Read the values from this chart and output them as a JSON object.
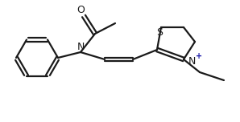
{
  "background_color": "#ffffff",
  "line_color": "#1a1a1a",
  "bond_width": 1.6,
  "font_size": 9,
  "plus_color": "#1a1aaa",
  "figsize": [
    2.98,
    1.52
  ],
  "dpi": 100,
  "xlim": [
    0,
    298
  ],
  "ylim": [
    0,
    152
  ]
}
